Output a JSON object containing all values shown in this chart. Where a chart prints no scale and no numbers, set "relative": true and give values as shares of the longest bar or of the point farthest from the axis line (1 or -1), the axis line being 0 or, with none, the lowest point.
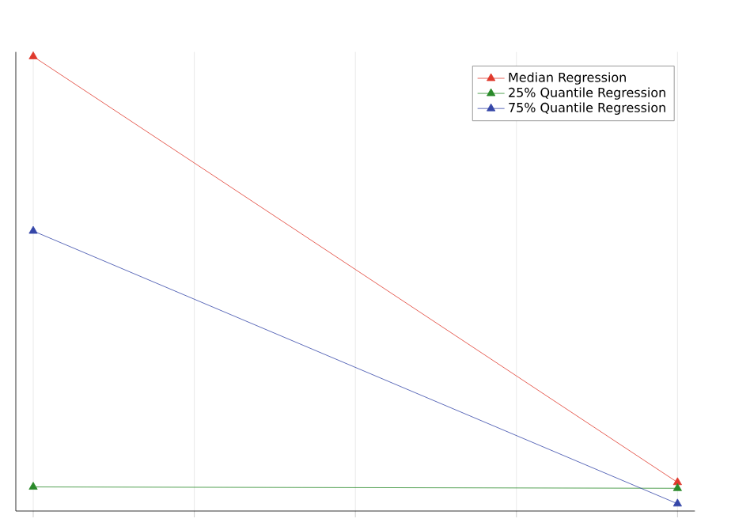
{
  "chart_data": {
    "type": "line",
    "relative": true,
    "categories": [
      null,
      null,
      null,
      null,
      null
    ],
    "series": [
      {
        "name": "Median Regression",
        "color": "#e0392c",
        "values": [
          1,
          null,
          null,
          null,
          0.063
        ]
      },
      {
        "name": "25% Quantile Regression",
        "color": "#2a8a2a",
        "values": [
          0.053,
          null,
          null,
          null,
          0.05
        ]
      },
      {
        "name": "75% Quantile Regression",
        "color": "#3546a8",
        "values": [
          0.616,
          null,
          null,
          null,
          0.016
        ]
      }
    ],
    "marker": "triangle",
    "grid": "x",
    "legend": "top right"
  }
}
